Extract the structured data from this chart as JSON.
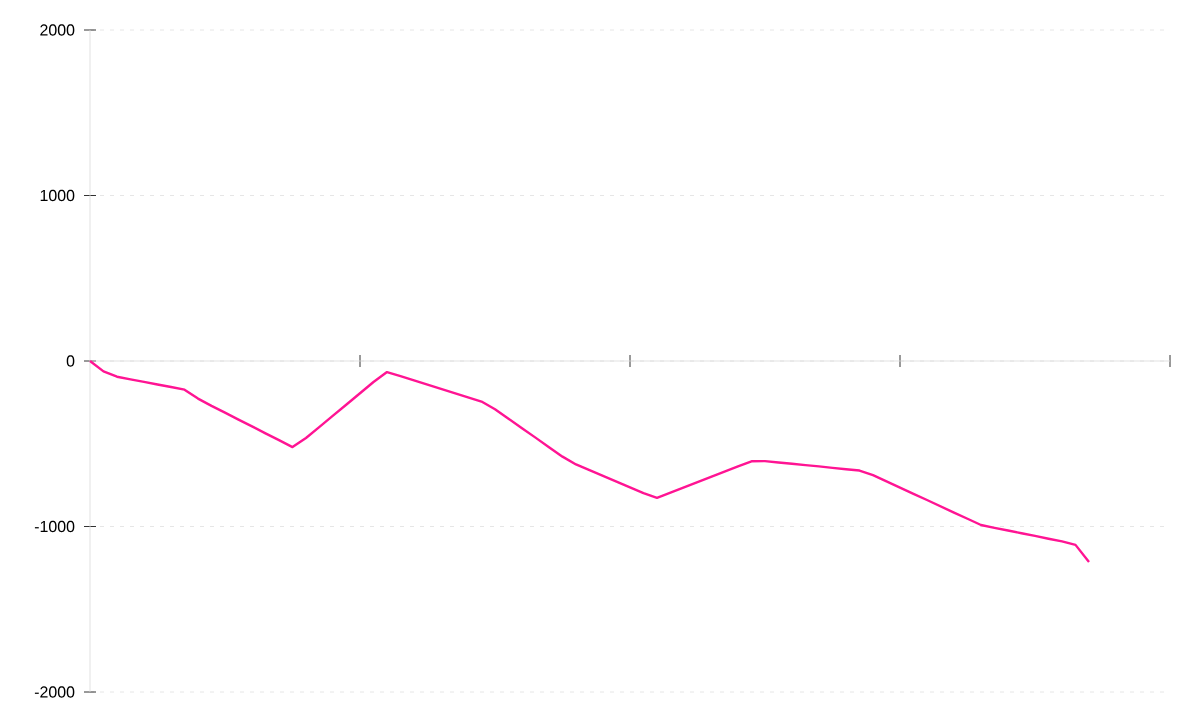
{
  "chart_data": {
    "type": "line",
    "categories": [
      null,
      null,
      null,
      null,
      null,
      null,
      null,
      null,
      null,
      null,
      null,
      null,
      null,
      null,
      null,
      null,
      null,
      null,
      null,
      null,
      null,
      null,
      null,
      null,
      null,
      null,
      null,
      null,
      null,
      null,
      null,
      null,
      null,
      null,
      null,
      null,
      null,
      null,
      null,
      null,
      null,
      null,
      null,
      null,
      null,
      null,
      null,
      null,
      null,
      null,
      null,
      null,
      null,
      null,
      null,
      null,
      null,
      null,
      null,
      null,
      null,
      null,
      null,
      null,
      null,
      null,
      null,
      null,
      null,
      null,
      null,
      null,
      null,
      null,
      null,
      null,
      null,
      null,
      null,
      null,
      null
    ],
    "values": [
      0,
      -63,
      -95,
      -111,
      -126,
      -142,
      -157,
      -173,
      -227,
      -271,
      -312,
      -354,
      -395,
      -437,
      -478,
      -520,
      -465,
      -398,
      -330,
      -263,
      -195,
      -127,
      -67,
      -91,
      -117,
      -143,
      -168,
      -194,
      -220,
      -245,
      -292,
      -349,
      -406,
      -463,
      -521,
      -578,
      -625,
      -660,
      -694,
      -729,
      -764,
      -798,
      -827,
      -796,
      -764,
      -732,
      -700,
      -669,
      -637,
      -606,
      -605,
      -613,
      -621,
      -629,
      -637,
      -646,
      -654,
      -662,
      -690,
      -727,
      -765,
      -803,
      -840,
      -878,
      -916,
      -953,
      -991,
      -1008,
      -1024,
      -1041,
      -1057,
      -1074,
      -1090,
      -1111,
      -1215,
      null,
      null,
      null,
      null,
      null,
      null
    ],
    "color": "#ff1493",
    "ylim": [
      -2000,
      2000
    ],
    "yticks": [
      -2000,
      -1000,
      0,
      1000,
      2000
    ],
    "tick_labels": "y",
    "grid": "y",
    "marker": "none",
    "line_style": "solid"
  }
}
